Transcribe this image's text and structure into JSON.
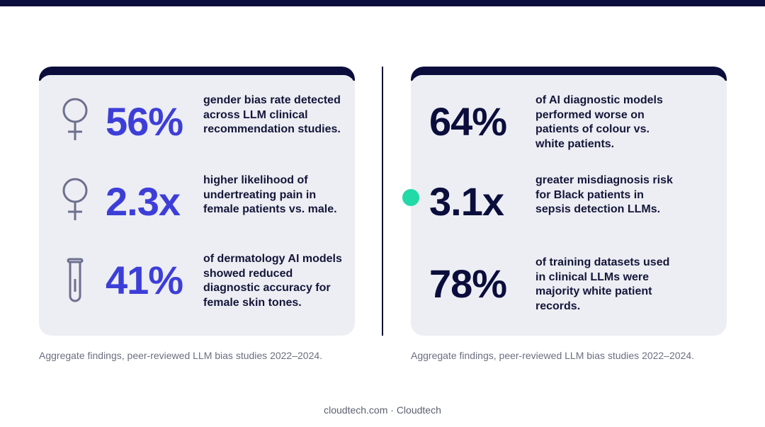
{
  "left_panel": {
    "stats": [
      {
        "icon": "female-symbol-icon",
        "value": "56%",
        "description": "gender bias rate detected across LLM clinical recommendation studies."
      },
      {
        "icon": "female-symbol-icon",
        "value": "2.3x",
        "description": "higher likelihood of undertreating pain in female patients vs. male."
      },
      {
        "icon": "test-tube-icon",
        "value": "41%",
        "description": "of dermatology AI models showed reduced diagnostic accuracy for female skin tones."
      }
    ],
    "caption": "Aggregate findings, peer-reviewed LLM bias studies 2022–2024."
  },
  "right_panel": {
    "stats": [
      {
        "value": "64%",
        "description": "of AI diagnostic models performed worse on patients of colour vs. white patients."
      },
      {
        "value": "3.1x",
        "description": "greater misdiagnosis risk for Black patients in sepsis detection LLMs."
      },
      {
        "value": "78%",
        "description": "of training datasets used in clinical LLMs were majority white patient records."
      }
    ],
    "caption": "Aggregate findings, peer-reviewed LLM bias studies 2022–2024."
  },
  "footer": "cloudtech.com · Cloudtech",
  "colors": {
    "navy": "#0b0d3c",
    "accent_blue": "#3d3ed8",
    "card_bg": "#eceef3",
    "marker_teal": "#22d9a8",
    "icon_gray": "#6d6f8e"
  }
}
